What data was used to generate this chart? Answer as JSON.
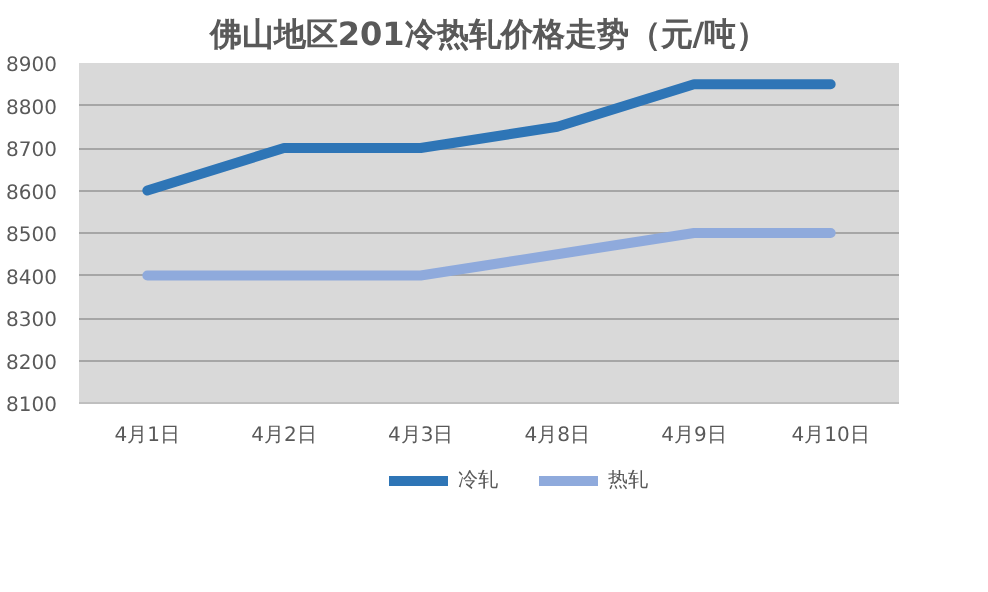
{
  "chart_data": {
    "type": "line",
    "title": "佛山地区201冷热轧价格走势（元/吨）",
    "categories": [
      "4月1日",
      "4月2日",
      "4月3日",
      "4月8日",
      "4月9日",
      "4月10日"
    ],
    "series": [
      {
        "name": "冷轧",
        "color": "#2e75b6",
        "values": [
          8600,
          8700,
          8700,
          8750,
          8850,
          8850
        ]
      },
      {
        "name": "热轧",
        "color": "#8faadc",
        "values": [
          8400,
          8400,
          8400,
          8450,
          8500,
          8500
        ]
      }
    ],
    "ylim": [
      8100,
      8900
    ],
    "yticks": [
      8100,
      8200,
      8300,
      8400,
      8500,
      8600,
      8700,
      8800,
      8900
    ],
    "grid": "y",
    "legend": "bottom",
    "marker": "none",
    "line_style": "solid"
  }
}
